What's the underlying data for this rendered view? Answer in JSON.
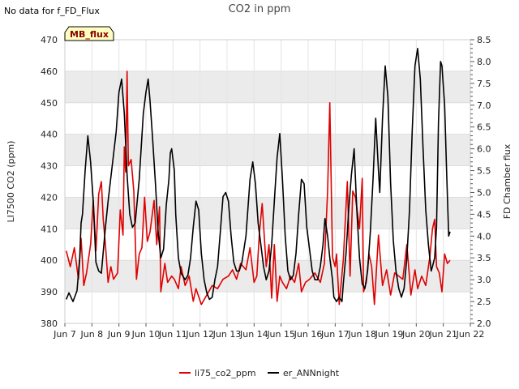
{
  "note": "No data for f_FD_Flux",
  "badge": "MB_flux",
  "colors": {
    "li75": "#e00000",
    "ann": "#000000",
    "band": "#ebebeb",
    "badge_bg": "#ffffc0"
  },
  "chart_data": {
    "type": "line",
    "title": "CO2 in ppm",
    "ylabel": "LI7500 CO2 (ppm)",
    "y2label": "FD Chamber flux",
    "xlim": [
      7,
      22
    ],
    "ylim": [
      380,
      470
    ],
    "y2lim": [
      2.0,
      8.5
    ],
    "x_ticks": [
      {
        "value": 7,
        "label": "Jun 7"
      },
      {
        "value": 8,
        "label": "Jun 8"
      },
      {
        "value": 9,
        "label": "Jun 9"
      },
      {
        "value": 10,
        "label": "Jun 10"
      },
      {
        "value": 11,
        "label": "Jun 11"
      },
      {
        "value": 12,
        "label": "Jun 12"
      },
      {
        "value": 13,
        "label": "Jun 13"
      },
      {
        "value": 14,
        "label": "Jun 14"
      },
      {
        "value": 15,
        "label": "Jun 15"
      },
      {
        "value": 16,
        "label": "Jun 16"
      },
      {
        "value": 17,
        "label": "Jun 17"
      },
      {
        "value": 18,
        "label": "Jun 18"
      },
      {
        "value": 19,
        "label": "Jun 19"
      },
      {
        "value": 20,
        "label": "Jun 20"
      },
      {
        "value": 21,
        "label": "Jun 21"
      },
      {
        "value": 22,
        "label": "Jun 22"
      }
    ],
    "y_ticks": [
      "380",
      "390",
      "400",
      "410",
      "420",
      "430",
      "440",
      "450",
      "460",
      "470"
    ],
    "y2_ticks": [
      "2.0",
      "2.5",
      "3.0",
      "3.5",
      "4.0",
      "4.5",
      "5.0",
      "5.5",
      "6.0",
      "6.5",
      "7.0",
      "7.5",
      "8.0",
      "8.5"
    ],
    "series": [
      {
        "name": "li75_co2_ppm",
        "axis": "left",
        "points": [
          [
            7.05,
            403
          ],
          [
            7.2,
            398
          ],
          [
            7.35,
            404
          ],
          [
            7.5,
            394
          ],
          [
            7.6,
            407
          ],
          [
            7.7,
            392
          ],
          [
            7.8,
            396
          ],
          [
            7.95,
            405
          ],
          [
            8.05,
            419
          ],
          [
            8.15,
            403
          ],
          [
            8.25,
            421
          ],
          [
            8.35,
            425
          ],
          [
            8.42,
            413
          ],
          [
            8.5,
            405
          ],
          [
            8.6,
            393
          ],
          [
            8.7,
            398
          ],
          [
            8.8,
            394
          ],
          [
            8.95,
            396
          ],
          [
            9.05,
            416
          ],
          [
            9.15,
            408
          ],
          [
            9.2,
            436
          ],
          [
            9.25,
            428
          ],
          [
            9.3,
            460
          ],
          [
            9.35,
            430
          ],
          [
            9.45,
            432
          ],
          [
            9.55,
            422
          ],
          [
            9.65,
            394
          ],
          [
            9.75,
            402
          ],
          [
            9.85,
            404
          ],
          [
            9.95,
            420
          ],
          [
            10.05,
            406
          ],
          [
            10.15,
            409
          ],
          [
            10.3,
            419
          ],
          [
            10.4,
            405
          ],
          [
            10.5,
            417
          ],
          [
            10.55,
            390
          ],
          [
            10.7,
            399
          ],
          [
            10.8,
            393
          ],
          [
            10.95,
            395
          ],
          [
            11.05,
            394
          ],
          [
            11.2,
            391
          ],
          [
            11.3,
            398
          ],
          [
            11.45,
            392
          ],
          [
            11.6,
            395
          ],
          [
            11.75,
            387
          ],
          [
            11.85,
            391
          ],
          [
            12.05,
            386
          ],
          [
            12.25,
            389
          ],
          [
            12.45,
            392
          ],
          [
            12.65,
            391
          ],
          [
            12.85,
            394
          ],
          [
            13.05,
            395
          ],
          [
            13.2,
            397
          ],
          [
            13.35,
            394
          ],
          [
            13.5,
            399
          ],
          [
            13.7,
            397
          ],
          [
            13.85,
            404
          ],
          [
            14.0,
            393
          ],
          [
            14.1,
            395
          ],
          [
            14.2,
            409
          ],
          [
            14.3,
            418
          ],
          [
            14.45,
            398
          ],
          [
            14.55,
            405
          ],
          [
            14.65,
            388
          ],
          [
            14.75,
            405
          ],
          [
            14.85,
            387
          ],
          [
            14.95,
            395
          ],
          [
            15.05,
            393
          ],
          [
            15.2,
            391
          ],
          [
            15.35,
            395
          ],
          [
            15.5,
            393
          ],
          [
            15.65,
            399
          ],
          [
            15.75,
            390
          ],
          [
            15.9,
            393
          ],
          [
            16.05,
            394
          ],
          [
            16.25,
            396
          ],
          [
            16.45,
            393
          ],
          [
            16.6,
            399
          ],
          [
            16.72,
            422
          ],
          [
            16.8,
            450
          ],
          [
            16.9,
            401
          ],
          [
            17.0,
            398
          ],
          [
            17.05,
            402
          ],
          [
            17.15,
            386
          ],
          [
            17.3,
            400
          ],
          [
            17.45,
            425
          ],
          [
            17.55,
            395
          ],
          [
            17.65,
            422
          ],
          [
            17.75,
            420
          ],
          [
            17.9,
            410
          ],
          [
            18.0,
            426
          ],
          [
            18.05,
            390
          ],
          [
            18.15,
            393
          ],
          [
            18.25,
            402
          ],
          [
            18.35,
            398
          ],
          [
            18.45,
            386
          ],
          [
            18.6,
            408
          ],
          [
            18.75,
            392
          ],
          [
            18.9,
            397
          ],
          [
            19.05,
            389
          ],
          [
            19.2,
            396
          ],
          [
            19.35,
            395
          ],
          [
            19.5,
            394
          ],
          [
            19.65,
            405
          ],
          [
            19.8,
            389
          ],
          [
            19.95,
            397
          ],
          [
            20.05,
            391
          ],
          [
            20.2,
            395
          ],
          [
            20.35,
            392
          ],
          [
            20.5,
            401
          ],
          [
            20.6,
            410
          ],
          [
            20.68,
            413
          ],
          [
            20.75,
            398
          ],
          [
            20.85,
            396
          ],
          [
            20.95,
            390
          ],
          [
            21.05,
            402
          ],
          [
            21.15,
            399
          ],
          [
            21.25,
            400
          ]
        ]
      },
      {
        "name": "er_ANNnight",
        "axis": "right",
        "points": [
          [
            7.05,
            2.55
          ],
          [
            7.15,
            2.7
          ],
          [
            7.3,
            2.5
          ],
          [
            7.45,
            2.75
          ],
          [
            7.55,
            3.5
          ],
          [
            7.6,
            4.3
          ],
          [
            7.65,
            4.5
          ],
          [
            7.75,
            5.5
          ],
          [
            7.85,
            6.3
          ],
          [
            7.95,
            5.7
          ],
          [
            8.05,
            4.8
          ],
          [
            8.15,
            3.4
          ],
          [
            8.25,
            3.2
          ],
          [
            8.35,
            3.15
          ],
          [
            8.5,
            4.2
          ],
          [
            8.6,
            4.8
          ],
          [
            8.75,
            5.6
          ],
          [
            8.9,
            6.4
          ],
          [
            9.0,
            7.3
          ],
          [
            9.1,
            7.6
          ],
          [
            9.2,
            6.8
          ],
          [
            9.3,
            5.4
          ],
          [
            9.4,
            4.5
          ],
          [
            9.5,
            4.2
          ],
          [
            9.6,
            4.3
          ],
          [
            9.75,
            5.3
          ],
          [
            9.9,
            6.8
          ],
          [
            10.0,
            7.3
          ],
          [
            10.08,
            7.6
          ],
          [
            10.15,
            7.1
          ],
          [
            10.25,
            6.2
          ],
          [
            10.35,
            5.2
          ],
          [
            10.45,
            4.1
          ],
          [
            10.55,
            3.5
          ],
          [
            10.65,
            3.7
          ],
          [
            10.75,
            4.7
          ],
          [
            10.85,
            5.3
          ],
          [
            10.9,
            5.9
          ],
          [
            10.95,
            6.0
          ],
          [
            11.05,
            5.5
          ],
          [
            11.1,
            4.5
          ],
          [
            11.2,
            3.5
          ],
          [
            11.3,
            3.15
          ],
          [
            11.45,
            3.0
          ],
          [
            11.55,
            3.1
          ],
          [
            11.65,
            3.5
          ],
          [
            11.75,
            4.2
          ],
          [
            11.85,
            4.8
          ],
          [
            11.95,
            4.6
          ],
          [
            12.05,
            3.6
          ],
          [
            12.15,
            3.0
          ],
          [
            12.25,
            2.7
          ],
          [
            12.35,
            2.55
          ],
          [
            12.45,
            2.6
          ],
          [
            12.55,
            3.0
          ],
          [
            12.65,
            3.3
          ],
          [
            12.75,
            4.1
          ],
          [
            12.85,
            4.9
          ],
          [
            12.95,
            5.0
          ],
          [
            13.05,
            4.8
          ],
          [
            13.15,
            4.0
          ],
          [
            13.25,
            3.4
          ],
          [
            13.35,
            3.2
          ],
          [
            13.45,
            3.2
          ],
          [
            13.55,
            3.4
          ],
          [
            13.7,
            4.0
          ],
          [
            13.85,
            5.3
          ],
          [
            13.95,
            5.7
          ],
          [
            14.05,
            5.2
          ],
          [
            14.15,
            4.3
          ],
          [
            14.25,
            3.8
          ],
          [
            14.35,
            3.3
          ],
          [
            14.45,
            3.0
          ],
          [
            14.55,
            3.2
          ],
          [
            14.65,
            3.8
          ],
          [
            14.75,
            4.8
          ],
          [
            14.85,
            5.8
          ],
          [
            14.95,
            6.35
          ],
          [
            15.05,
            5.3
          ],
          [
            15.15,
            4.0
          ],
          [
            15.25,
            3.2
          ],
          [
            15.35,
            3.0
          ],
          [
            15.45,
            3.1
          ],
          [
            15.55,
            3.6
          ],
          [
            15.65,
            4.5
          ],
          [
            15.75,
            5.3
          ],
          [
            15.85,
            5.2
          ],
          [
            15.95,
            4.2
          ],
          [
            16.05,
            3.7
          ],
          [
            16.15,
            3.2
          ],
          [
            16.25,
            3.0
          ],
          [
            16.35,
            3.0
          ],
          [
            16.45,
            3.3
          ],
          [
            16.55,
            3.8
          ],
          [
            16.62,
            4.4
          ],
          [
            16.72,
            4.0
          ],
          [
            16.8,
            3.5
          ],
          [
            16.9,
            3.0
          ],
          [
            16.95,
            2.6
          ],
          [
            17.05,
            2.5
          ],
          [
            17.15,
            2.6
          ],
          [
            17.25,
            2.5
          ],
          [
            17.3,
            2.9
          ],
          [
            17.4,
            3.6
          ],
          [
            17.5,
            4.6
          ],
          [
            17.6,
            5.4
          ],
          [
            17.7,
            6.0
          ],
          [
            17.8,
            4.6
          ],
          [
            17.9,
            3.5
          ],
          [
            18.0,
            2.9
          ],
          [
            18.1,
            2.8
          ],
          [
            18.2,
            3.2
          ],
          [
            18.3,
            4.1
          ],
          [
            18.4,
            5.3
          ],
          [
            18.5,
            6.7
          ],
          [
            18.6,
            5.5
          ],
          [
            18.65,
            5.0
          ],
          [
            18.75,
            6.7
          ],
          [
            18.85,
            7.9
          ],
          [
            18.95,
            7.2
          ],
          [
            19.05,
            5.2
          ],
          [
            19.15,
            3.9
          ],
          [
            19.25,
            3.2
          ],
          [
            19.35,
            2.8
          ],
          [
            19.45,
            2.6
          ],
          [
            19.55,
            2.8
          ],
          [
            19.65,
            3.5
          ],
          [
            19.75,
            4.6
          ],
          [
            19.85,
            6.4
          ],
          [
            19.95,
            7.9
          ],
          [
            20.05,
            8.3
          ],
          [
            20.15,
            7.6
          ],
          [
            20.25,
            6.0
          ],
          [
            20.35,
            4.6
          ],
          [
            20.45,
            3.8
          ],
          [
            20.55,
            3.2
          ],
          [
            20.6,
            3.3
          ],
          [
            20.68,
            3.5
          ],
          [
            20.75,
            4.2
          ],
          [
            20.82,
            6.6
          ],
          [
            20.9,
            8.0
          ],
          [
            20.95,
            7.9
          ],
          [
            21.05,
            7.0
          ],
          [
            21.12,
            5.5
          ],
          [
            21.2,
            4.0
          ],
          [
            21.25,
            4.1
          ]
        ]
      }
    ]
  }
}
